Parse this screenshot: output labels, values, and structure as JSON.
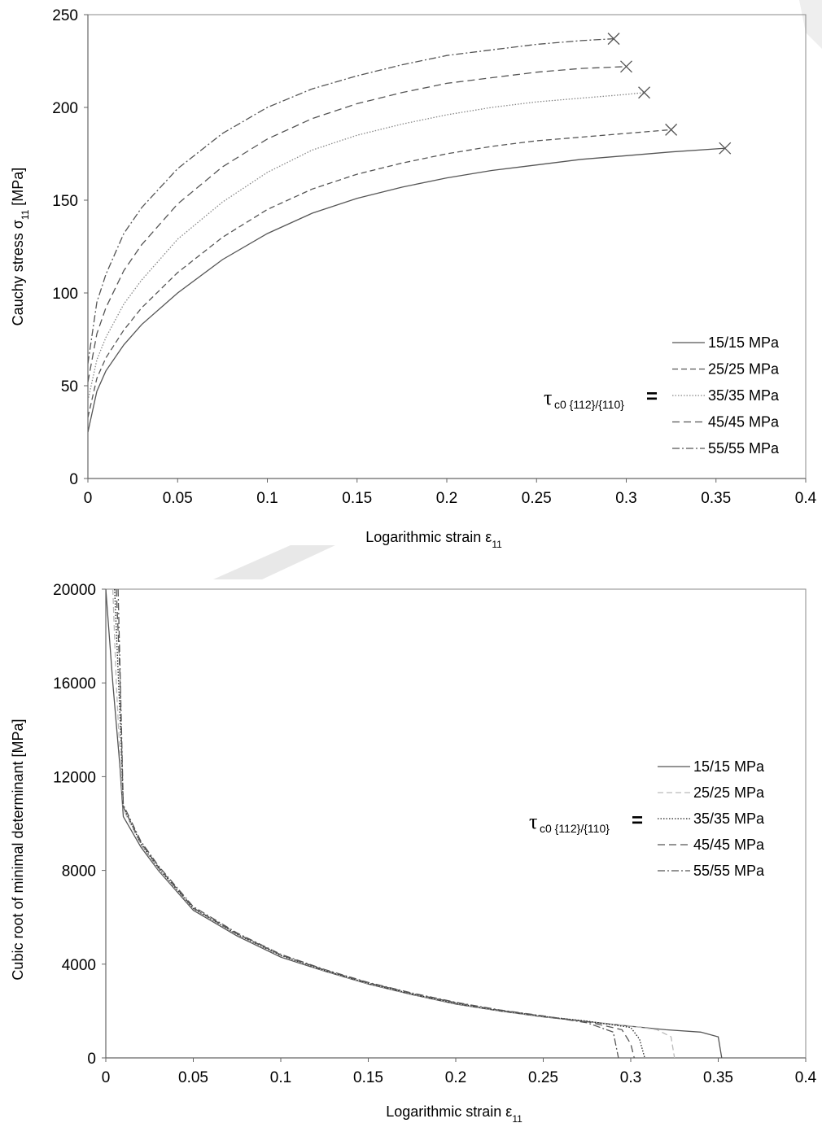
{
  "chart_data": [
    {
      "type": "line",
      "title": "",
      "xlabel": "Logarithmic strain ε",
      "xlabel_sub": "11",
      "ylabel": "Cauchy stress σ",
      "ylabel_sub": "11",
      "ylabel_unit": "[MPa]",
      "xlim": [
        0,
        0.4
      ],
      "ylim": [
        0,
        250
      ],
      "xticks": [
        "0",
        "0.05",
        "0.1",
        "0.15",
        "0.2",
        "0.25",
        "0.3",
        "0.35",
        "0.4"
      ],
      "yticks": [
        "0",
        "50",
        "100",
        "150",
        "200",
        "250"
      ],
      "grid": false,
      "legend_position": "bottom-right",
      "legend_prefix": "τ",
      "legend_prefix_sub": "c0 {112}/{110}",
      "legend_prefix_eq": "=",
      "series": [
        {
          "name": "15/15 MPa",
          "dash": "solid",
          "color": "#555555",
          "x": [
            0,
            0.005,
            0.01,
            0.02,
            0.03,
            0.05,
            0.075,
            0.1,
            0.125,
            0.15,
            0.175,
            0.2,
            0.225,
            0.25,
            0.275,
            0.3,
            0.325,
            0.355
          ],
          "y": [
            25,
            47,
            58,
            72,
            83,
            100,
            118,
            132,
            143,
            151,
            157,
            162,
            166,
            169,
            172,
            174,
            176,
            178
          ],
          "failure_marker": true
        },
        {
          "name": "25/25 MPa",
          "dash": "dashed",
          "color": "#555555",
          "x": [
            0,
            0.005,
            0.01,
            0.02,
            0.03,
            0.05,
            0.075,
            0.1,
            0.125,
            0.15,
            0.175,
            0.2,
            0.225,
            0.25,
            0.275,
            0.3,
            0.325
          ],
          "y": [
            33,
            54,
            65,
            80,
            92,
            111,
            130,
            145,
            156,
            164,
            170,
            175,
            179,
            182,
            184,
            186,
            188
          ],
          "failure_marker": true
        },
        {
          "name": "35/35 MPa",
          "dash": "dotted",
          "color": "#888888",
          "x": [
            0,
            0.005,
            0.01,
            0.02,
            0.03,
            0.05,
            0.075,
            0.1,
            0.125,
            0.15,
            0.175,
            0.2,
            0.225,
            0.25,
            0.275,
            0.3,
            0.31
          ],
          "y": [
            42,
            64,
            76,
            94,
            107,
            129,
            149,
            165,
            177,
            185,
            191,
            196,
            200,
            203,
            205,
            207,
            208
          ],
          "failure_marker": true
        },
        {
          "name": "45/45 MPa",
          "dash": "longdash",
          "color": "#555555",
          "x": [
            0,
            0.005,
            0.01,
            0.02,
            0.03,
            0.05,
            0.075,
            0.1,
            0.125,
            0.15,
            0.175,
            0.2,
            0.225,
            0.25,
            0.275,
            0.3
          ],
          "y": [
            52,
            78,
            92,
            112,
            126,
            148,
            168,
            183,
            194,
            202,
            208,
            213,
            216,
            219,
            221,
            222
          ],
          "failure_marker": true
        },
        {
          "name": "55/55 MPa",
          "dash": "dashdot",
          "color": "#555555",
          "x": [
            0,
            0.005,
            0.01,
            0.02,
            0.03,
            0.05,
            0.075,
            0.1,
            0.125,
            0.15,
            0.175,
            0.2,
            0.225,
            0.25,
            0.275,
            0.293
          ],
          "y": [
            62,
            95,
            110,
            132,
            146,
            167,
            186,
            200,
            210,
            217,
            223,
            228,
            231,
            234,
            236,
            237
          ],
          "failure_marker": true
        }
      ]
    },
    {
      "type": "line",
      "title": "",
      "xlabel": "Logarithmic strain ε",
      "xlabel_sub": "11",
      "ylabel": "Cubic root of minimal determinant [MPa]",
      "xlim": [
        0,
        0.4
      ],
      "ylim": [
        0,
        20000
      ],
      "xticks": [
        "0",
        "0.05",
        "0.1",
        "0.15",
        "0.2",
        "0.25",
        "0.3",
        "0.35",
        "0.4"
      ],
      "yticks": [
        "0",
        "4000",
        "8000",
        "12000",
        "16000",
        "20000"
      ],
      "grid": false,
      "legend_position": "center-right",
      "legend_prefix": "τ",
      "legend_prefix_sub": "c0 {112}/{110}",
      "legend_prefix_eq": "=",
      "series": [
        {
          "name": "15/15 MPa",
          "dash": "solid",
          "color": "#555555",
          "x": [
            0,
            0.004,
            0.008,
            0.01,
            0.02,
            0.03,
            0.05,
            0.075,
            0.1,
            0.125,
            0.15,
            0.175,
            0.2,
            0.225,
            0.25,
            0.275,
            0.3,
            0.32,
            0.34,
            0.35,
            0.352
          ],
          "y": [
            20000,
            16000,
            12500,
            10300,
            9000,
            8000,
            6300,
            5200,
            4300,
            3700,
            3150,
            2700,
            2300,
            2000,
            1750,
            1550,
            1350,
            1200,
            1100,
            900,
            0
          ]
        },
        {
          "name": "25/25 MPa",
          "dash": "dashed",
          "color": "#bbbbbb",
          "x": [
            0.004,
            0.006,
            0.008,
            0.01,
            0.02,
            0.03,
            0.05,
            0.075,
            0.1,
            0.125,
            0.15,
            0.175,
            0.2,
            0.225,
            0.25,
            0.275,
            0.3,
            0.315,
            0.323,
            0.325
          ],
          "y": [
            20000,
            16000,
            13000,
            10600,
            9100,
            8050,
            6350,
            5250,
            4350,
            3720,
            3170,
            2720,
            2320,
            2010,
            1760,
            1560,
            1360,
            1200,
            900,
            0
          ]
        },
        {
          "name": "35/35 MPa",
          "dash": "dotted",
          "color": "#222222",
          "x": [
            0.005,
            0.007,
            0.009,
            0.01,
            0.02,
            0.03,
            0.05,
            0.075,
            0.1,
            0.125,
            0.15,
            0.175,
            0.2,
            0.225,
            0.25,
            0.275,
            0.3,
            0.305,
            0.308
          ],
          "y": [
            20000,
            16500,
            13000,
            10700,
            9150,
            8100,
            6380,
            5270,
            4370,
            3730,
            3180,
            2730,
            2330,
            2020,
            1770,
            1570,
            1300,
            800,
            0
          ]
        },
        {
          "name": "45/45 MPa",
          "dash": "longdash",
          "color": "#555555",
          "x": [
            0.006,
            0.008,
            0.009,
            0.01,
            0.02,
            0.03,
            0.05,
            0.075,
            0.1,
            0.125,
            0.15,
            0.175,
            0.2,
            0.225,
            0.25,
            0.275,
            0.295,
            0.3,
            0.302
          ],
          "y": [
            20000,
            16500,
            13500,
            10700,
            9200,
            8150,
            6400,
            5300,
            4400,
            3750,
            3200,
            2750,
            2350,
            2030,
            1780,
            1550,
            1200,
            600,
            0
          ]
        },
        {
          "name": "55/55 MPa",
          "dash": "dashdot",
          "color": "#555555",
          "x": [
            0.007,
            0.008,
            0.009,
            0.01,
            0.02,
            0.03,
            0.05,
            0.075,
            0.1,
            0.125,
            0.15,
            0.175,
            0.2,
            0.225,
            0.25,
            0.275,
            0.29,
            0.293
          ],
          "y": [
            20000,
            17000,
            14000,
            10800,
            9250,
            8200,
            6450,
            5330,
            4420,
            3770,
            3220,
            2770,
            2370,
            2050,
            1790,
            1500,
            1100,
            0
          ]
        }
      ]
    }
  ]
}
